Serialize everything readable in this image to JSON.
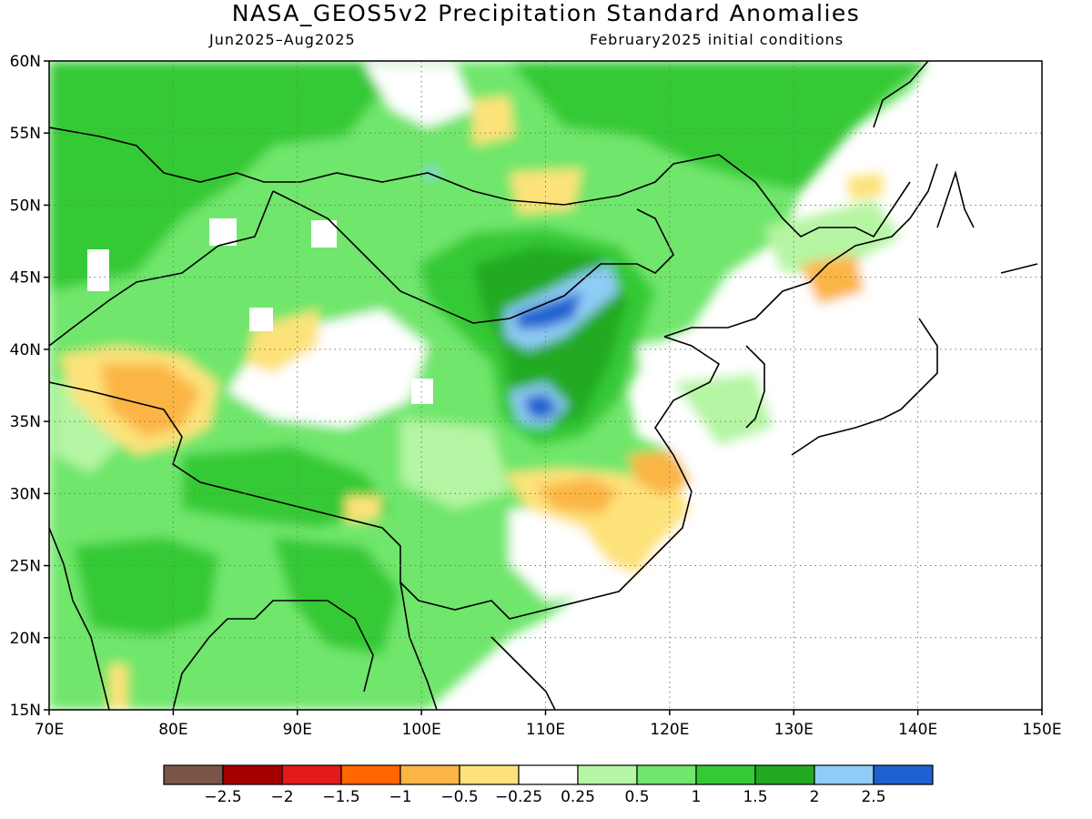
{
  "title": "NASA_GEOS5v2 Precipitation Standard Anomalies",
  "period": "Jun2025–Aug2025",
  "init": "February2025 initial conditions",
  "map": {
    "lon_range": [
      70,
      150
    ],
    "lat_range": [
      15,
      60
    ],
    "lon_ticks": [
      "70E",
      "80E",
      "90E",
      "100E",
      "110E",
      "120E",
      "130E",
      "140E",
      "150E"
    ],
    "lat_ticks": [
      "60N",
      "55N",
      "50N",
      "45N",
      "40N",
      "35N",
      "30N",
      "25N",
      "20N",
      "15N"
    ],
    "grid_lines": "dotted"
  },
  "colorbar": {
    "colors": [
      "#7a5548",
      "#a50000",
      "#e31a1c",
      "#ff6600",
      "#fbb545",
      "#fde27a",
      "#ffffff",
      "#b5f5a3",
      "#6fe66c",
      "#35c935",
      "#21aa21",
      "#8fccf6",
      "#1e60d0"
    ],
    "labels": [
      "−2.5",
      "−2",
      "−1.5",
      "−1",
      "−0.5",
      "−0.25",
      "0.25",
      "0.5",
      "1",
      "1.5",
      "2",
      "2.5"
    ]
  },
  "anomaly_regions": [
    {
      "name": "mongolia-positive",
      "lon": [
        98,
        118
      ],
      "lat": [
        38,
        48
      ],
      "value": "1.5"
    },
    {
      "name": "inner-mongolia-max",
      "lon": [
        107,
        115
      ],
      "lat": [
        40,
        45
      ],
      "value": "2.5"
    },
    {
      "name": "gansu-max",
      "lon": [
        108,
        113
      ],
      "lat": [
        34,
        38
      ],
      "value": "2.5"
    },
    {
      "name": "west-china-negative",
      "lon": [
        74,
        83
      ],
      "lat": [
        33,
        40
      ],
      "value": "−0.5"
    },
    {
      "name": "central-china-negative",
      "lon": [
        108,
        118
      ],
      "lat": [
        27,
        32
      ],
      "value": "−0.5"
    },
    {
      "name": "north-siberia-positive",
      "lon": [
        70,
        145
      ],
      "lat": [
        51,
        60
      ],
      "value": "1"
    },
    {
      "name": "india-positive",
      "lon": [
        72,
        86
      ],
      "lat": [
        15,
        27
      ],
      "value": "1.5"
    }
  ]
}
